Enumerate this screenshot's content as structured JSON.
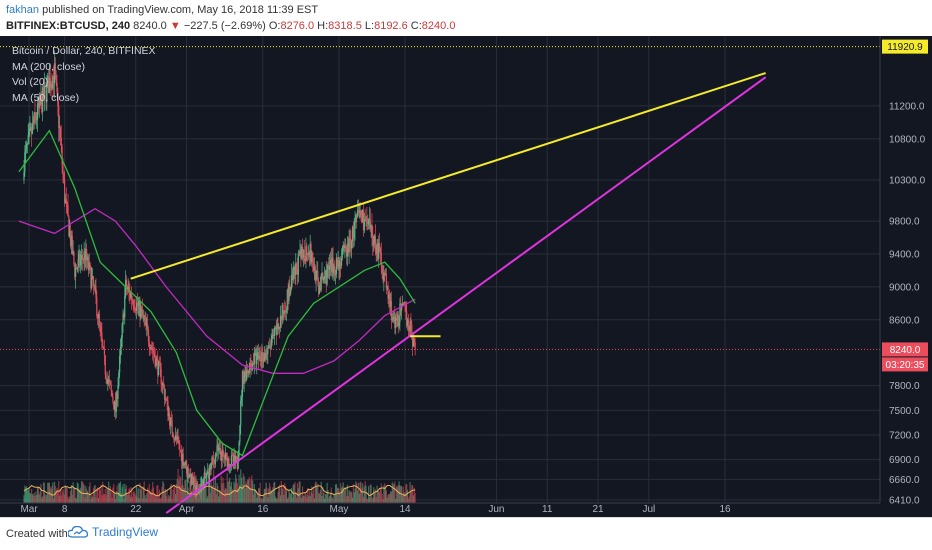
{
  "header": {
    "author": "fakhan",
    "published_text": "published on TradingView.com, May 16, 2018 11:39 EST",
    "symbol": "BITFINEX:BTCUSD, 240",
    "last_price": "8240.0",
    "change_arrow": "▼",
    "change": "−227.5 (−2.69%)",
    "open_label": "O:",
    "open": "8276.0",
    "high_label": "H:",
    "high": "8318.5",
    "low_label": "L:",
    "low": "8192.6",
    "close_label": "C:",
    "close": "8240.0"
  },
  "legend": [
    "Bitcoin / Dollar, 240, BITFINEX",
    "MA (200, close)",
    "Vol (20)",
    "MA (50, close)"
  ],
  "price_tags": {
    "top_level": "11920.9",
    "last": "8240.0",
    "countdown": "03:20:35"
  },
  "colors": {
    "background": "#131722",
    "grid": "#2a2e39",
    "up_candle": "#53b987",
    "down_candle": "#eb4d5c",
    "ma50": "#2ebd3c",
    "ma200": "#c22bc2",
    "resistance_line": "#f5eb2a",
    "support_line": "#e134e1",
    "volume_ma": "#f0b35a"
  },
  "footer": {
    "created_with": "Created with",
    "brand": "TradingView"
  },
  "chart_data": {
    "type": "candlestick",
    "y_axis": {
      "min": 6300,
      "max": 12050,
      "tick_labels": [
        "11920.9",
        "11200.0",
        "10800.0",
        "10300.0",
        "9800.0",
        "9400.0",
        "9000.0",
        "8600.0",
        "8240.0",
        "7800.0",
        "7500.0",
        "7200.0",
        "6900.0",
        "6660.0",
        "6410.0"
      ]
    },
    "x_axis": {
      "tick_labels": [
        "Mar",
        "8",
        "22",
        "Apr",
        "16",
        "May",
        "14",
        "Jun",
        "11",
        "21",
        "Jul",
        "16"
      ]
    },
    "price_path": [
      [
        "Feb 28",
        10300
      ],
      [
        "Mar 2",
        11000
      ],
      [
        "Mar 5",
        11500
      ],
      [
        "Mar 6",
        11600
      ],
      [
        "Mar 7",
        10900
      ],
      [
        "Mar 8",
        10100
      ],
      [
        "Mar 10",
        9200
      ],
      [
        "Mar 12",
        9400
      ],
      [
        "Mar 14",
        8900
      ],
      [
        "Mar 16",
        8000
      ],
      [
        "Mar 18",
        7500
      ],
      [
        "Mar 19",
        8200
      ],
      [
        "Mar 20",
        9000
      ],
      [
        "Mar 21",
        8900
      ],
      [
        "Mar 23",
        8700
      ],
      [
        "Mar 25",
        8300
      ],
      [
        "Mar 27",
        7900
      ],
      [
        "Mar 29",
        7300
      ],
      [
        "Apr 1",
        6800
      ],
      [
        "Apr 3",
        6500
      ],
      [
        "Apr 5",
        6700
      ],
      [
        "Apr 7",
        7000
      ],
      [
        "Apr 9",
        6900
      ],
      [
        "Apr 11",
        6850
      ],
      [
        "Apr 12",
        7900
      ],
      [
        "Apr 14",
        8100
      ],
      [
        "Apr 17",
        8200
      ],
      [
        "Apr 19",
        8500
      ],
      [
        "Apr 21",
        8900
      ],
      [
        "Apr 23",
        9300
      ],
      [
        "Apr 25",
        9500
      ],
      [
        "Apr 27",
        9000
      ],
      [
        "Apr 29",
        9200
      ],
      [
        "May 1",
        9300
      ],
      [
        "May 3",
        9500
      ],
      [
        "May 5",
        9900
      ],
      [
        "May 7",
        9700
      ],
      [
        "May 9",
        9400
      ],
      [
        "May 11",
        8800
      ],
      [
        "May 12",
        8500
      ],
      [
        "May 13",
        8700
      ],
      [
        "May 14",
        8700
      ],
      [
        "May 15",
        8500
      ],
      [
        "May 16",
        8240
      ]
    ],
    "ma50_path": [
      [
        "Feb 28",
        10400
      ],
      [
        "Mar 5",
        10900
      ],
      [
        "Mar 10",
        10200
      ],
      [
        "Mar 15",
        9300
      ],
      [
        "Mar 20",
        9000
      ],
      [
        "Mar 25",
        8700
      ],
      [
        "Mar 30",
        8200
      ],
      [
        "Apr 3",
        7500
      ],
      [
        "Apr 8",
        7100
      ],
      [
        "Apr 12",
        6950
      ],
      [
        "Apr 16",
        7600
      ],
      [
        "Apr 21",
        8400
      ],
      [
        "Apr 26",
        8800
      ],
      [
        "May 1",
        9000
      ],
      [
        "May 6",
        9200
      ],
      [
        "May 10",
        9300
      ],
      [
        "May 13",
        9100
      ],
      [
        "May 16",
        8800
      ]
    ],
    "ma200_path": [
      [
        "Feb 28",
        9800
      ],
      [
        "Mar 6",
        9650
      ],
      [
        "Mar 10",
        9800
      ],
      [
        "Mar 14",
        9950
      ],
      [
        "Mar 18",
        9800
      ],
      [
        "Mar 22",
        9500
      ],
      [
        "Mar 28",
        9000
      ],
      [
        "Apr 5",
        8400
      ],
      [
        "Apr 12",
        8050
      ],
      [
        "Apr 18",
        7950
      ],
      [
        "Apr 24",
        7950
      ],
      [
        "Apr 30",
        8100
      ],
      [
        "May 5",
        8350
      ],
      [
        "May 10",
        8650
      ],
      [
        "May 16",
        8850
      ]
    ],
    "trendlines": [
      {
        "name": "resistance",
        "from": [
          "Mar 21",
          9100
        ],
        "to": [
          "Jul 24",
          11600
        ]
      },
      {
        "name": "support",
        "from": [
          "Mar 28",
          6250
        ],
        "to": [
          "Jul 24",
          11550
        ]
      },
      {
        "name": "horizontal",
        "from": [
          "May 15",
          8400
        ],
        "to": [
          "May 21",
          8400
        ]
      }
    ],
    "horizontal_level": 11920.9,
    "last_price": 8240.0
  }
}
